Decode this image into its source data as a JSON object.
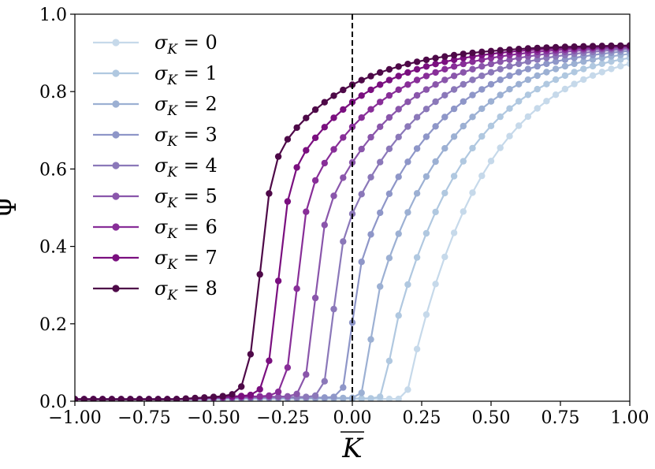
{
  "chart_data": {
    "type": "line",
    "xlabel": "K",
    "ylabel": "Ψ",
    "xlim": [
      -1.0,
      1.0
    ],
    "ylim": [
      0.0,
      1.0
    ],
    "x_ticks": [
      "−1.00",
      "−0.75",
      "−0.50",
      "−0.25",
      "0.00",
      "0.25",
      "0.50",
      "0.75",
      "1.00"
    ],
    "y_ticks": [
      "0.0",
      "0.2",
      "0.4",
      "0.6",
      "0.8",
      "1.0"
    ],
    "grid": false,
    "legend_position": "top-left",
    "vline_x": 0.0,
    "series": [
      {
        "name": "σ_K = 0",
        "label_main": "σ",
        "label_sub": "K",
        "label_rest": " = 0",
        "color": "#c6d9ea",
        "sigma": 0
      },
      {
        "name": "σ_K = 1",
        "label_main": "σ",
        "label_sub": "K",
        "label_rest": " = 1",
        "color": "#b0c8e0",
        "sigma": 1
      },
      {
        "name": "σ_K = 2",
        "label_main": "σ",
        "label_sub": "K",
        "label_rest": " = 2",
        "color": "#9cb0d3",
        "sigma": 2
      },
      {
        "name": "σ_K = 3",
        "label_main": "σ",
        "label_sub": "K",
        "label_rest": " = 3",
        "color": "#8e96c8",
        "sigma": 3
      },
      {
        "name": "σ_K = 4",
        "label_main": "σ",
        "label_sub": "K",
        "label_rest": " = 4",
        "color": "#8b78b9",
        "sigma": 4
      },
      {
        "name": "σ_K = 5",
        "label_main": "σ",
        "label_sub": "K",
        "label_rest": " = 5",
        "color": "#8a56ab",
        "sigma": 5
      },
      {
        "name": "σ_K = 6",
        "label_main": "σ",
        "label_sub": "K",
        "label_rest": " = 6",
        "color": "#882e98",
        "sigma": 6
      },
      {
        "name": "σ_K = 7",
        "label_main": "σ",
        "label_sub": "K",
        "label_rest": " = 7",
        "color": "#7a0f7f",
        "sigma": 7
      },
      {
        "name": "σ_K = 8",
        "label_main": "σ",
        "label_sub": "K",
        "label_rest": " = 8",
        "color": "#4e0948",
        "sigma": 8
      }
    ]
  }
}
